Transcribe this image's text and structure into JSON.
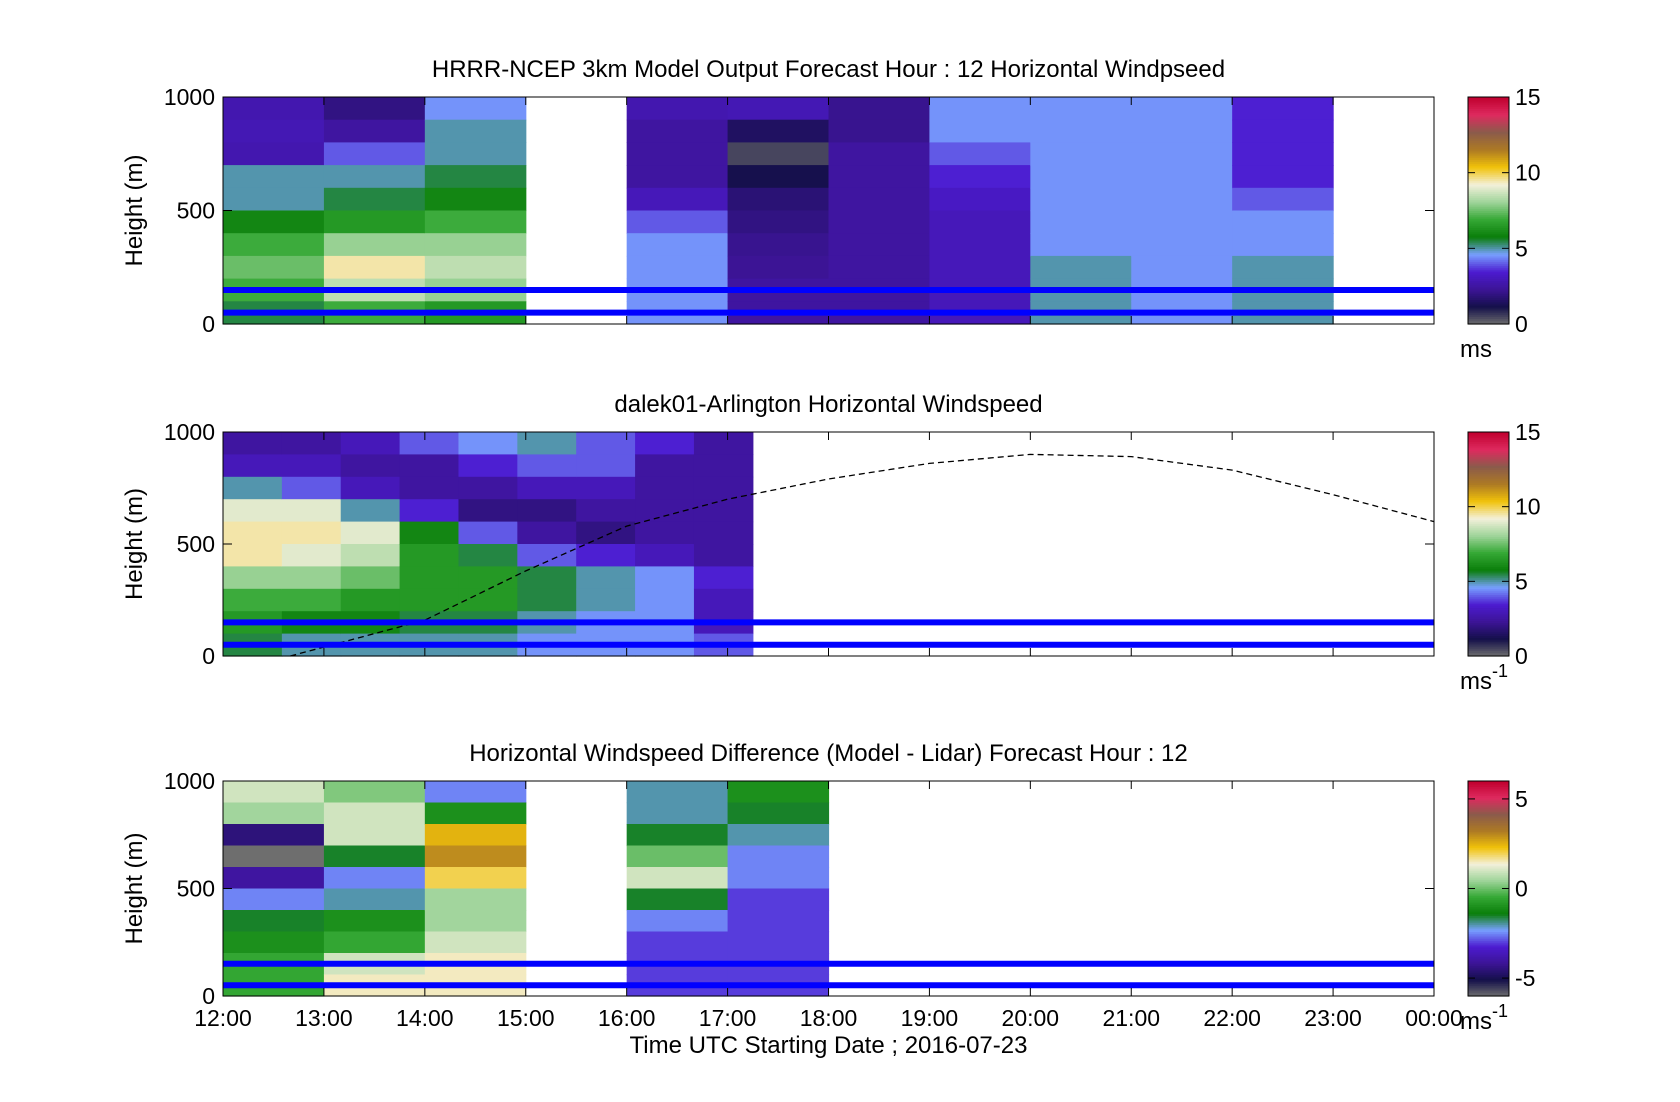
{
  "colors": {
    "reference_line": "#0000ff",
    "cbar_stops": [
      "#6e6e6e",
      "#14104a",
      "#3c1496",
      "#4c1bd0",
      "#78a0ff",
      "#0a7e0a",
      "#35a835",
      "#9fd49a",
      "#f3f0da",
      "#f1c20a",
      "#ad7a24",
      "#8b5b4b",
      "#de2a5f",
      "#c0002e"
    ]
  },
  "panels": [
    {
      "id": "model",
      "title": "HRRR-NCEP 3km Model Output   Forecast Hour : 12 Horizontal Windpseed",
      "ylabel": "Height (m)",
      "yticks": [
        "1000",
        "500",
        "0"
      ],
      "colorbar": {
        "ticks": [
          "15",
          "10",
          "5",
          "0"
        ],
        "range": [
          0,
          15
        ],
        "unit": "ms",
        "unit_sup": ""
      },
      "ref_heights_m": [
        150,
        50
      ],
      "has_curve": false
    },
    {
      "id": "lidar",
      "title": "dalek01-Arlington  Horizontal Windspeed",
      "ylabel": "Height (m)",
      "yticks": [
        "1000",
        "500",
        "0"
      ],
      "colorbar": {
        "ticks": [
          "15",
          "10",
          "5",
          "0"
        ],
        "range": [
          0,
          15
        ],
        "unit": "ms",
        "unit_sup": "-1"
      },
      "ref_heights_m": [
        150,
        50
      ],
      "has_curve": true
    },
    {
      "id": "diff",
      "title": "Horizontal Windspeed Difference (Model - Lidar) Forecast Hour : 12",
      "ylabel": "Height (m)",
      "yticks": [
        "1000",
        "500",
        "0"
      ],
      "colorbar": {
        "ticks": [
          "5",
          "0",
          "-5"
        ],
        "range": [
          -6,
          6
        ],
        "unit": "ms",
        "unit_sup": "-1"
      },
      "ref_heights_m": [
        150,
        50
      ],
      "has_curve": false
    }
  ],
  "xaxis": {
    "ticks": [
      "12:00",
      "13:00",
      "14:00",
      "15:00",
      "16:00",
      "17:00",
      "18:00",
      "19:00",
      "20:00",
      "21:00",
      "22:00",
      "23:00",
      "00:00"
    ],
    "label": "Time UTC  Starting Date ; 2016-07-23"
  },
  "chart_data": [
    {
      "type": "heatmap",
      "title": "HRRR-NCEP 3km Model Output   Forecast Hour : 12 Horizontal Windpseed",
      "ylabel": "Height (m)",
      "ylim": [
        0,
        1000
      ],
      "x_hours": [
        "12:00",
        "13:00",
        "14:00",
        "15:00",
        "16:00",
        "17:00",
        "18:00",
        "19:00",
        "20:00",
        "21:00",
        "22:00",
        "23:00"
      ],
      "z_range": [
        0,
        15
      ],
      "colorbar_unit": "ms",
      "height_bins_top_down_m": [
        950,
        850,
        750,
        650,
        550,
        450,
        350,
        250,
        150,
        50
      ],
      "columns_windspeed_ms": [
        [
          2.8,
          2.9,
          2.8,
          5.0,
          5.0,
          6.0,
          7.0,
          7.5,
          7.0,
          5.5
        ],
        [
          2.0,
          2.5,
          4.0,
          5.0,
          5.5,
          6.5,
          8.0,
          9.5,
          8.5,
          7.0
        ],
        [
          4.5,
          5.0,
          5.0,
          5.5,
          6.0,
          7.0,
          8.0,
          8.5,
          8.0,
          6.5
        ],
        [
          null,
          null,
          null,
          null,
          null,
          null,
          null,
          null,
          null,
          null
        ],
        [
          2.8,
          2.5,
          2.5,
          2.5,
          3.0,
          4.0,
          4.5,
          4.5,
          4.5,
          4.5
        ],
        [
          2.9,
          1.5,
          0.5,
          1.2,
          1.8,
          2.0,
          2.2,
          2.3,
          2.5,
          2.5
        ],
        [
          2.2,
          2.2,
          2.5,
          2.5,
          2.5,
          2.5,
          2.5,
          2.5,
          2.5,
          2.5
        ],
        [
          4.5,
          4.5,
          4.0,
          3.5,
          3.2,
          3.0,
          3.0,
          3.0,
          3.0,
          3.0
        ],
        [
          4.5,
          4.5,
          4.5,
          4.5,
          4.5,
          4.5,
          4.5,
          5.0,
          5.0,
          5.0
        ],
        [
          4.5,
          4.5,
          4.5,
          4.5,
          4.5,
          4.5,
          4.5,
          4.5,
          4.5,
          4.5
        ],
        [
          3.5,
          3.5,
          3.5,
          3.5,
          4.0,
          4.5,
          4.5,
          5.0,
          5.0,
          5.0
        ],
        [
          null,
          null,
          null,
          null,
          null,
          null,
          null,
          null,
          null,
          null
        ]
      ],
      "reference_lines_m": [
        150,
        50
      ]
    },
    {
      "type": "heatmap",
      "title": "dalek01-Arlington  Horizontal Windspeed",
      "ylabel": "Height (m)",
      "ylim": [
        0,
        1000
      ],
      "z_range": [
        0,
        15
      ],
      "colorbar_unit": "ms-1",
      "data_extent_hours": [
        "12:00",
        "17:50"
      ],
      "height_bins_top_down_m": [
        950,
        850,
        750,
        650,
        550,
        450,
        350,
        250,
        150,
        50
      ],
      "columns_windspeed_ms": [
        [
          2.5,
          3.0,
          5.0,
          9.0,
          9.5,
          9.5,
          8.0,
          7.0,
          6.5,
          5.5
        ],
        [
          2.5,
          3.0,
          4.0,
          9.0,
          9.5,
          9.0,
          8.0,
          7.0,
          6.0,
          5.0
        ],
        [
          3.0,
          2.5,
          3.0,
          5.0,
          9.0,
          8.5,
          7.5,
          6.5,
          6.0,
          5.0
        ],
        [
          4.0,
          2.5,
          2.5,
          3.5,
          6.0,
          6.5,
          6.5,
          6.5,
          5.5,
          5.0
        ],
        [
          4.5,
          3.5,
          2.5,
          2.0,
          4.0,
          5.5,
          6.5,
          6.5,
          5.5,
          5.0
        ],
        [
          5.0,
          4.0,
          3.0,
          2.0,
          2.5,
          4.0,
          5.5,
          5.5,
          5.0,
          4.5
        ],
        [
          4.0,
          4.0,
          3.0,
          2.5,
          2.0,
          3.5,
          5.0,
          5.0,
          4.5,
          4.5
        ],
        [
          3.5,
          2.5,
          2.5,
          2.5,
          2.5,
          3.0,
          4.5,
          4.5,
          4.5,
          4.5
        ],
        [
          2.5,
          2.5,
          2.5,
          2.5,
          2.5,
          2.5,
          3.5,
          3.0,
          3.0,
          4.0
        ],
        [
          null,
          null,
          null,
          null,
          null,
          null,
          null,
          null,
          null,
          null
        ]
      ],
      "boundary_layer_curve_m": [
        {
          "time": "12:40",
          "height": 0
        },
        {
          "time": "14:00",
          "height": 160
        },
        {
          "time": "15:00",
          "height": 380
        },
        {
          "time": "16:00",
          "height": 580
        },
        {
          "time": "17:00",
          "height": 700
        },
        {
          "time": "18:00",
          "height": 790
        },
        {
          "time": "19:00",
          "height": 860
        },
        {
          "time": "20:00",
          "height": 900
        },
        {
          "time": "21:00",
          "height": 890
        },
        {
          "time": "22:00",
          "height": 830
        },
        {
          "time": "23:00",
          "height": 720
        },
        {
          "time": "00:00",
          "height": 600
        }
      ],
      "reference_lines_m": [
        150,
        50
      ]
    },
    {
      "type": "heatmap",
      "title": "Horizontal Windspeed Difference (Model - Lidar) Forecast Hour : 12",
      "ylabel": "Height (m)",
      "ylim": [
        0,
        1000
      ],
      "x_hours": [
        "12:00",
        "13:00",
        "14:00",
        "15:00",
        "16:00",
        "17:00"
      ],
      "z_range": [
        -6,
        6
      ],
      "colorbar_unit": "ms-1",
      "height_bins_top_down_m": [
        950,
        850,
        750,
        650,
        550,
        450,
        350,
        250,
        150,
        50
      ],
      "columns_difference_ms": [
        [
          1.0,
          0.5,
          -4.5,
          -6.0,
          -4.0,
          -2.5,
          -1.5,
          -1.0,
          -0.5,
          -0.5
        ],
        [
          0.2,
          1.0,
          1.0,
          -1.5,
          -2.5,
          -2.0,
          -1.0,
          -0.5,
          1.0,
          1.5
        ],
        [
          -2.5,
          -1.0,
          2.5,
          3.0,
          2.0,
          0.5,
          0.5,
          1.0,
          1.5,
          1.5
        ],
        [
          null,
          null,
          null,
          null,
          null,
          null,
          null,
          null,
          null,
          null
        ],
        [
          -2.0,
          -2.0,
          -1.5,
          0.0,
          1.0,
          -1.5,
          -2.5,
          -3.0,
          -3.0,
          -3.0
        ],
        [
          -1.0,
          -1.5,
          -2.0,
          -2.5,
          -2.5,
          -3.0,
          -3.0,
          -3.0,
          -3.0,
          -3.0
        ]
      ],
      "reference_lines_m": [
        150,
        50
      ]
    }
  ]
}
